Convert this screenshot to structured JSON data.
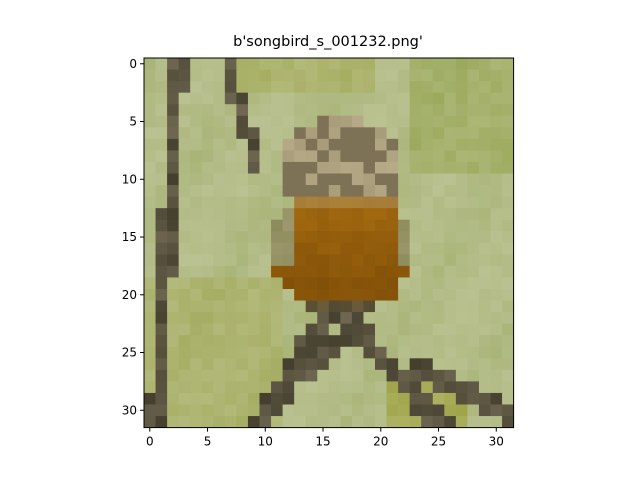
{
  "figure": {
    "title": "b'songbird_s_001232.png'"
  },
  "image": {
    "grid_width": 32,
    "grid_height": 32,
    "subject": "small songbird perched on twigs, pixelated 32x32",
    "colors": {
      "background_green": "#a7b477",
      "background_light": "#b9c08f",
      "background_olive": "#8e9f3f",
      "breast_orange": "#a46a10",
      "breast_dark": "#7a4a06",
      "head_speckle": "#b7aa88",
      "head_dark": "#6f6448",
      "twig_dark": "#3d3828",
      "twig_light": "#8a8168",
      "leaf_yellow": "#9c9d2e"
    }
  },
  "x_axis": {
    "ticks": [
      "0",
      "5",
      "10",
      "15",
      "20",
      "25",
      "30"
    ],
    "tick_values": [
      0,
      5,
      10,
      15,
      20,
      25,
      30
    ]
  },
  "y_axis": {
    "ticks": [
      "0",
      "5",
      "10",
      "15",
      "20",
      "25",
      "30"
    ],
    "tick_values": [
      0,
      5,
      10,
      15,
      20,
      25,
      30
    ]
  }
}
